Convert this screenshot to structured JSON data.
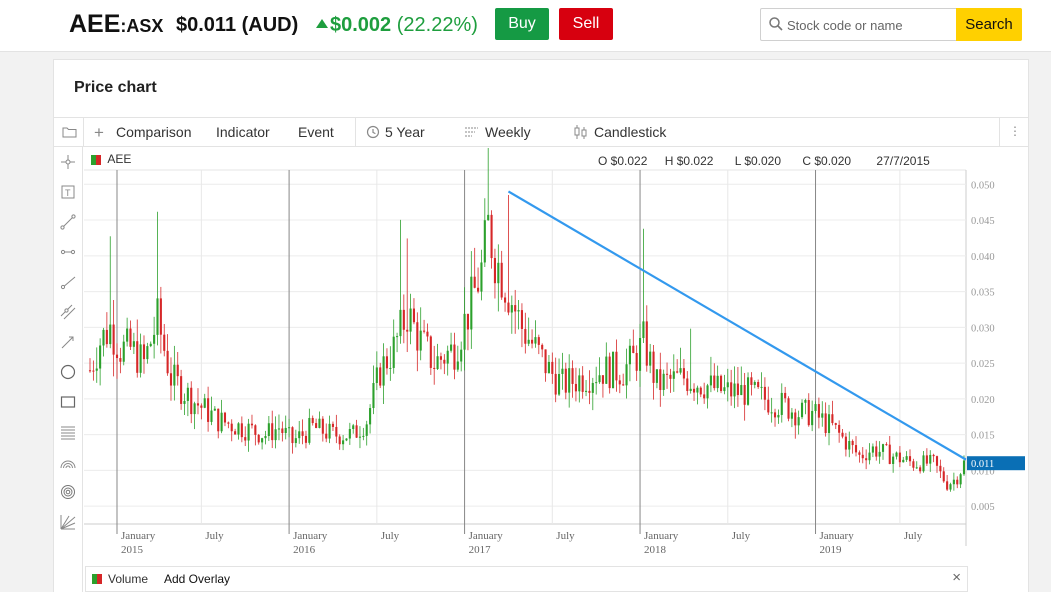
{
  "header": {
    "symbol": "AEE",
    "exchange": ":ASX",
    "price": "$0.011 (AUD)",
    "change_abs": "$0.002",
    "change_pct": "(22.22%)",
    "change_color": "#1e9e3e",
    "buy_label": "Buy",
    "sell_label": "Sell",
    "search_placeholder": "Stock code or name",
    "search_label": "Search"
  },
  "card": {
    "title": "Price chart"
  },
  "toolbar": {
    "comparison": "Comparison",
    "indicator": "Indicator",
    "event": "Event",
    "period": "5 Year",
    "interval": "Weekly",
    "chart_style": "Candlestick"
  },
  "chart_info": {
    "series_name": "AEE",
    "open": "O $0.022",
    "high": "H $0.022",
    "low": "L $0.020",
    "close": "C $0.020",
    "date": "27/7/2015",
    "last_price_tag": "0.011"
  },
  "volume_bar": {
    "label": "Volume",
    "add_overlay": "Add Overlay",
    "close_glyph": "×"
  },
  "colors": {
    "up": "#2ca02c",
    "down": "#d62728",
    "trendline": "#3399ee",
    "price_tag": "#0a6fb5",
    "buy": "#159a44",
    "sell": "#d7000f",
    "search": "#ffd000"
  },
  "chart_data": {
    "type": "candlestick",
    "title": "",
    "y_ticks": [
      "0.050",
      "0.045",
      "0.040",
      "0.035",
      "0.030",
      "0.025",
      "0.020",
      "0.015",
      "0.010",
      "0.005"
    ],
    "ylim": [
      0.0025,
      0.052
    ],
    "x_ticks": [
      {
        "label": "January",
        "sub": "2015",
        "week": 8
      },
      {
        "label": "July",
        "sub": "",
        "week": 33
      },
      {
        "label": "January",
        "sub": "2016",
        "week": 59
      },
      {
        "label": "July",
        "sub": "",
        "week": 85
      },
      {
        "label": "January",
        "sub": "2017",
        "week": 111
      },
      {
        "label": "July",
        "sub": "",
        "week": 137
      },
      {
        "label": "January",
        "sub": "2018",
        "week": 163
      },
      {
        "label": "July",
        "sub": "",
        "week": 189
      },
      {
        "label": "January",
        "sub": "2019",
        "week": 215
      },
      {
        "label": "July",
        "sub": "",
        "week": 240
      }
    ],
    "year_gridline_weeks": [
      8,
      59,
      111,
      163,
      215
    ],
    "trendline": {
      "start": {
        "week": 124,
        "value": 0.049
      },
      "end": {
        "week": 259,
        "value": 0.0115
      }
    },
    "last_value": 0.011,
    "total_weeks": 260,
    "anchors": [
      [
        0,
        0.024
      ],
      [
        3,
        0.028
      ],
      [
        6,
        0.03
      ],
      [
        9,
        0.027
      ],
      [
        12,
        0.027
      ],
      [
        16,
        0.025
      ],
      [
        20,
        0.031
      ],
      [
        24,
        0.023
      ],
      [
        30,
        0.02
      ],
      [
        38,
        0.017
      ],
      [
        45,
        0.016
      ],
      [
        52,
        0.015
      ],
      [
        56,
        0.016
      ],
      [
        60,
        0.014
      ],
      [
        66,
        0.016
      ],
      [
        72,
        0.015
      ],
      [
        78,
        0.015
      ],
      [
        82,
        0.017
      ],
      [
        86,
        0.024
      ],
      [
        90,
        0.027
      ],
      [
        94,
        0.032
      ],
      [
        98,
        0.028
      ],
      [
        102,
        0.025
      ],
      [
        108,
        0.027
      ],
      [
        112,
        0.032
      ],
      [
        116,
        0.038
      ],
      [
        118,
        0.044
      ],
      [
        120,
        0.04
      ],
      [
        124,
        0.035
      ],
      [
        128,
        0.03
      ],
      [
        132,
        0.027
      ],
      [
        136,
        0.024
      ],
      [
        140,
        0.022
      ],
      [
        146,
        0.023
      ],
      [
        152,
        0.024
      ],
      [
        158,
        0.024
      ],
      [
        162,
        0.026
      ],
      [
        164,
        0.028
      ],
      [
        168,
        0.022
      ],
      [
        176,
        0.023
      ],
      [
        182,
        0.022
      ],
      [
        188,
        0.021
      ],
      [
        194,
        0.021
      ],
      [
        200,
        0.02
      ],
      [
        206,
        0.019
      ],
      [
        210,
        0.018
      ],
      [
        214,
        0.018
      ],
      [
        220,
        0.016
      ],
      [
        224,
        0.014
      ],
      [
        228,
        0.012
      ],
      [
        232,
        0.013
      ],
      [
        238,
        0.012
      ],
      [
        244,
        0.011
      ],
      [
        250,
        0.011
      ],
      [
        254,
        0.008
      ],
      [
        257,
        0.009
      ],
      [
        259,
        0.011
      ]
    ]
  }
}
